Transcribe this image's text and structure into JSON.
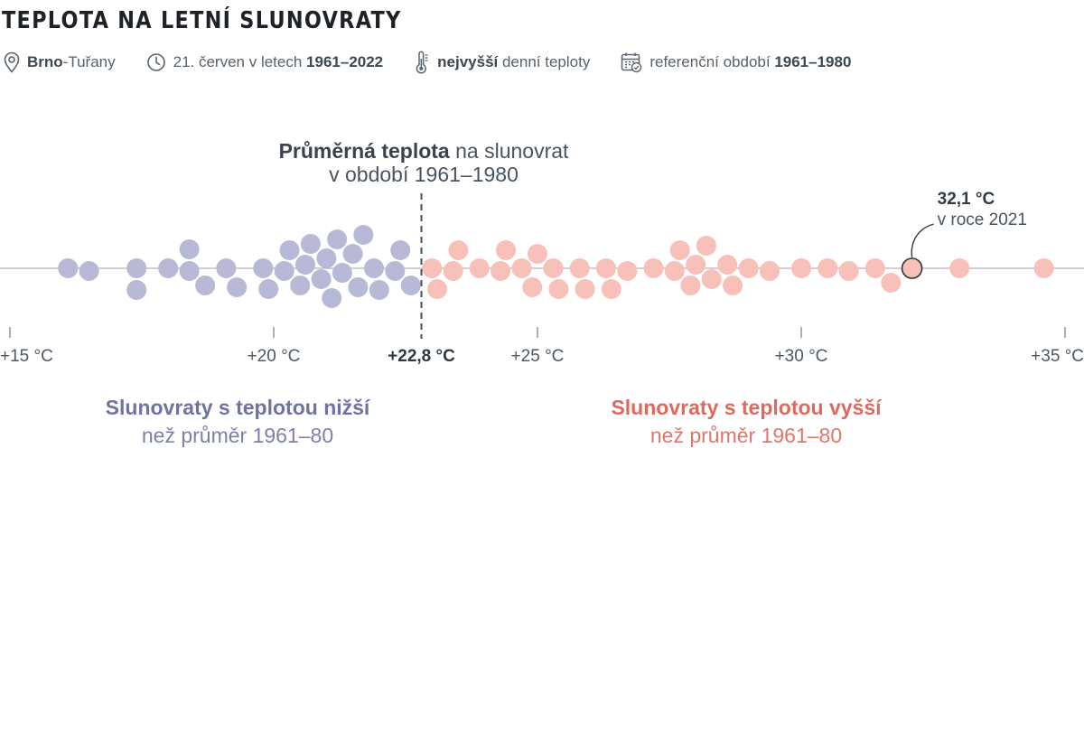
{
  "header": {
    "title": "TEPLOTA NA LETNÍ SLUNOVRATY",
    "meta": {
      "location_bold": "Brno",
      "location_rest": "-Tuřany",
      "date_prefix": "21. červen v letech ",
      "date_bold": "1961–2022",
      "measure_bold": "nejvyšší",
      "measure_rest": " denní teploty",
      "reference_prefix": "referenční období ",
      "reference_bold": "1961–1980"
    }
  },
  "icons": {
    "location": "map-pin-icon",
    "time": "clock-icon",
    "measure": "thermometer-icon",
    "reference": "calendar-check-icon"
  },
  "colors": {
    "below": "#b8b9d6",
    "above": "#f7c0b8",
    "highlight_stroke": "#2e343a",
    "axis": "#9aa0a6",
    "mean_line": "#4a5158",
    "below_text": "#6f73a3",
    "above_text": "#de6a5f"
  },
  "chart_data": {
    "type": "scatter",
    "variant": "beeswarm",
    "x_unit": "°C",
    "xlim": [
      14.8,
      35.3
    ],
    "xticks": [
      {
        "value": 15,
        "label": "+15 °C"
      },
      {
        "value": 20,
        "label": "+20 °C"
      },
      {
        "value": 25,
        "label": "+25 °C"
      },
      {
        "value": 30,
        "label": "+30 °C"
      },
      {
        "value": 35,
        "label": "+35 °C"
      }
    ],
    "reference": {
      "value": 22.8,
      "label": "+22,8 °C",
      "note_bold": "Průměrná teplota",
      "note_rest": " na slunovrat",
      "note_line2": "v období 1961–1980"
    },
    "highlight": {
      "value": 32.1,
      "year": 2021,
      "label_value": "32,1 °C",
      "label_year": "v roce 2021"
    },
    "series": [
      {
        "name": "Slunovraty s teplotou nižší",
        "subtitle": "než průměr 1961–80",
        "values": [
          16.1,
          16.5,
          17.4,
          17.4,
          18.0,
          18.4,
          18.4,
          18.7,
          19.1,
          19.3,
          19.8,
          19.9,
          20.2,
          20.3,
          20.5,
          20.6,
          20.7,
          20.9,
          21.0,
          21.1,
          21.2,
          21.3,
          21.5,
          21.6,
          21.7,
          21.9,
          22.0,
          22.3,
          22.4,
          22.6
        ]
      },
      {
        "name": "Slunovraty s teplotou vyšší",
        "subtitle": "než průměr 1961–80",
        "values": [
          23.0,
          23.1,
          23.4,
          23.5,
          23.9,
          24.3,
          24.4,
          24.7,
          24.9,
          25.0,
          25.3,
          25.4,
          25.8,
          25.9,
          26.3,
          26.4,
          26.7,
          27.2,
          27.6,
          27.7,
          27.9,
          28.0,
          28.2,
          28.3,
          28.6,
          28.7,
          29.0,
          29.4,
          30.0,
          30.5,
          30.9,
          31.4,
          31.7,
          32.1,
          33.0,
          34.6
        ]
      }
    ]
  }
}
